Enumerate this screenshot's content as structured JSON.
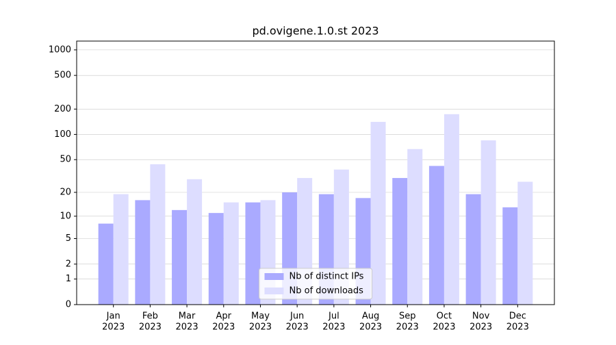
{
  "chart_data": {
    "type": "bar",
    "title": "pd.ovigene.1.0.st 2023",
    "categories": [
      [
        "Jan",
        "2023"
      ],
      [
        "Feb",
        "2023"
      ],
      [
        "Mar",
        "2023"
      ],
      [
        "Apr",
        "2023"
      ],
      [
        "May",
        "2023"
      ],
      [
        "Jun",
        "2023"
      ],
      [
        "Jul",
        "2023"
      ],
      [
        "Aug",
        "2023"
      ],
      [
        "Sep",
        "2023"
      ],
      [
        "Oct",
        "2023"
      ],
      [
        "Nov",
        "2023"
      ],
      [
        "Dec",
        "2023"
      ]
    ],
    "series": [
      {
        "name": "Nb of distinct IPs",
        "color": "#aaaaff",
        "values": [
          8,
          16,
          12,
          11,
          15,
          20,
          19,
          17,
          30,
          42,
          19,
          13
        ]
      },
      {
        "name": "Nb of downloads",
        "color": "#ddddff",
        "values": [
          19,
          44,
          29,
          15,
          16,
          30,
          38,
          141,
          67,
          174,
          85,
          27
        ]
      }
    ],
    "y_scale": "log1p",
    "ylim": [
      0,
      1270
    ],
    "yticks": [
      0,
      1,
      2,
      5,
      10,
      20,
      50,
      100,
      200,
      500,
      1000
    ],
    "grid": true,
    "legend": "lower center"
  }
}
